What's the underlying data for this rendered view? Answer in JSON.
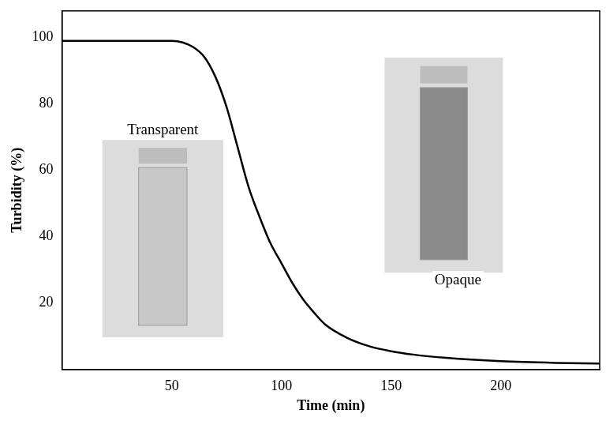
{
  "chart_data": {
    "type": "line",
    "x_label": "Time (min)",
    "y_label": "Turbidity (%)",
    "x": [
      0,
      50,
      55,
      60,
      65,
      70,
      75,
      80,
      85,
      90,
      95,
      100,
      105,
      110,
      115,
      120,
      130,
      140,
      150,
      160,
      175,
      200,
      225,
      245
    ],
    "series": [
      {
        "name": "Turbidity",
        "color": "#000000",
        "values": [
          99,
          99,
          98.5,
          97,
          94,
          88,
          79,
          67,
          55,
          46,
          38,
          32,
          26,
          21,
          17,
          13.5,
          9.5,
          7,
          5.5,
          4.5,
          3.5,
          2.5,
          2,
          1.8
        ]
      }
    ],
    "xlim": [
      0,
      245
    ],
    "xticks": [
      50,
      100,
      150,
      200
    ],
    "ylim": [
      0,
      108
    ],
    "yticks": [
      20,
      40,
      60,
      80,
      100
    ],
    "annotations": [
      "Transparent",
      "Opaque"
    ],
    "grid": false
  }
}
